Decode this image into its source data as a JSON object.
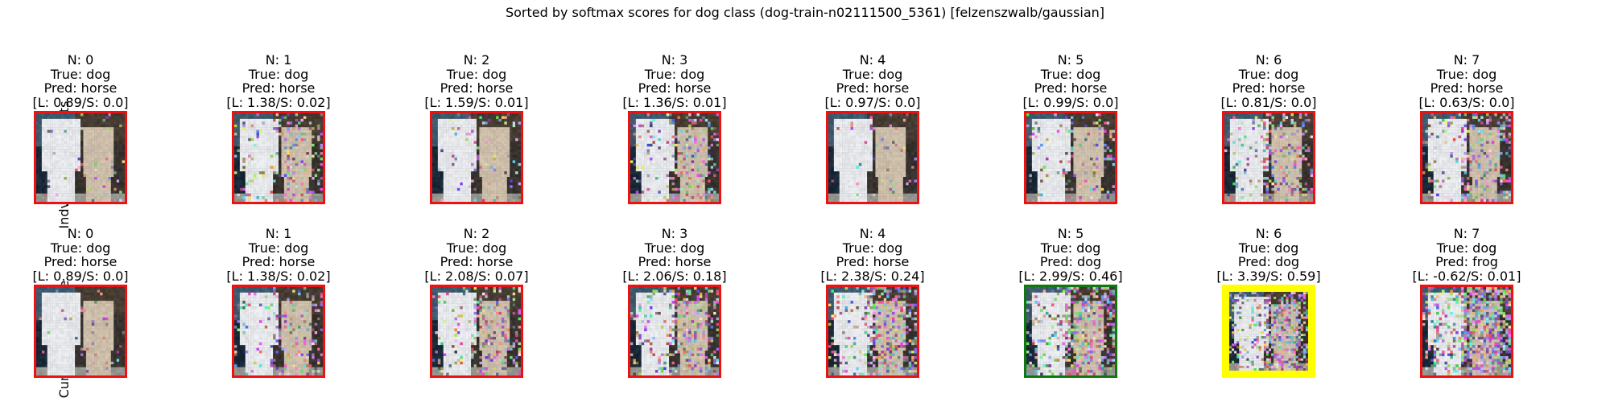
{
  "figure": {
    "title": "Sorted by softmax scores for dog class (dog-train-n02111500_5361) [felzenszwalb/gaussian]",
    "row_labels": [
      "Indvidual Segments",
      "Cumulative Image"
    ]
  },
  "colors": {
    "red": "#ee1111",
    "green": "#117711",
    "yellow": "#ffff00"
  },
  "rows": [
    {
      "name": "Indvidual Segments",
      "panels": [
        {
          "n": "N: 0",
          "true": "True: dog",
          "pred": "Pred: horse",
          "score": "[L: 0.89/S: 0.0]",
          "border": "red",
          "noise": 0.05
        },
        {
          "n": "N: 1",
          "true": "True: dog",
          "pred": "Pred: horse",
          "score": "[L: 1.38/S: 0.02]",
          "border": "red",
          "noise": 0.2
        },
        {
          "n": "N: 2",
          "true": "True: dog",
          "pred": "Pred: horse",
          "score": "[L: 1.59/S: 0.01]",
          "border": "red",
          "noise": 0.08
        },
        {
          "n": "N: 3",
          "true": "True: dog",
          "pred": "Pred: horse",
          "score": "[L: 1.36/S: 0.01]",
          "border": "red",
          "noise": 0.25
        },
        {
          "n": "N: 4",
          "true": "True: dog",
          "pred": "Pred: horse",
          "score": "[L: 0.97/S: 0.0]",
          "border": "red",
          "noise": 0.05
        },
        {
          "n": "N: 5",
          "true": "True: dog",
          "pred": "Pred: horse",
          "score": "[L: 0.99/S: 0.0]",
          "border": "red",
          "noise": 0.15
        },
        {
          "n": "N: 6",
          "true": "True: dog",
          "pred": "Pred: horse",
          "score": "[L: 0.81/S: 0.0]",
          "border": "red",
          "noise": 0.25
        },
        {
          "n": "N: 7",
          "true": "True: dog",
          "pred": "Pred: horse",
          "score": "[L: 0.63/S: 0.0]",
          "border": "red",
          "noise": 0.3
        }
      ]
    },
    {
      "name": "Cumulative Image",
      "panels": [
        {
          "n": "N: 0",
          "true": "True: dog",
          "pred": "Pred: horse",
          "score": "[L: 0.89/S: 0.0]",
          "border": "red",
          "noise": 0.05
        },
        {
          "n": "N: 1",
          "true": "True: dog",
          "pred": "Pred: horse",
          "score": "[L: 1.38/S: 0.02]",
          "border": "red",
          "noise": 0.2
        },
        {
          "n": "N: 2",
          "true": "True: dog",
          "pred": "Pred: horse",
          "score": "[L: 2.08/S: 0.07]",
          "border": "red",
          "noise": 0.25
        },
        {
          "n": "N: 3",
          "true": "True: dog",
          "pred": "Pred: horse",
          "score": "[L: 2.06/S: 0.18]",
          "border": "red",
          "noise": 0.35
        },
        {
          "n": "N: 4",
          "true": "True: dog",
          "pred": "Pred: horse",
          "score": "[L: 2.38/S: 0.24]",
          "border": "red",
          "noise": 0.4
        },
        {
          "n": "N: 5",
          "true": "True: dog",
          "pred": "Pred: dog",
          "score": "[L: 2.99/S: 0.46]",
          "border": "green",
          "noise": 0.45
        },
        {
          "n": "N: 6",
          "true": "True: dog",
          "pred": "Pred: dog",
          "score": "[L: 3.39/S: 0.59]",
          "border": "yellow",
          "noise": 0.55
        },
        {
          "n": "N: 7",
          "true": "True: dog",
          "pred": "Pred: frog",
          "score": "[L: -0.62/S: 0.01]",
          "border": "red",
          "noise": 0.65
        }
      ]
    }
  ],
  "chart_data": {
    "type": "image-grid",
    "title": "Sorted by softmax scores for dog class (dog-train-n02111500_5361) [felzenszwalb/gaussian]",
    "rows": [
      "Indvidual Segments",
      "Cumulative Image"
    ],
    "columns": [
      0,
      1,
      2,
      3,
      4,
      5,
      6,
      7
    ],
    "true_label": "dog",
    "series": [
      {
        "name": "Indvidual Segments",
        "pred": [
          "horse",
          "horse",
          "horse",
          "horse",
          "horse",
          "horse",
          "horse",
          "horse"
        ],
        "logit": [
          0.89,
          1.38,
          1.59,
          1.36,
          0.97,
          0.99,
          0.81,
          0.63
        ],
        "softmax": [
          0.0,
          0.02,
          0.01,
          0.01,
          0.0,
          0.0,
          0.0,
          0.0
        ]
      },
      {
        "name": "Cumulative Image",
        "pred": [
          "horse",
          "horse",
          "horse",
          "horse",
          "horse",
          "dog",
          "dog",
          "frog"
        ],
        "logit": [
          0.89,
          1.38,
          2.08,
          2.06,
          2.38,
          2.99,
          3.39,
          -0.62
        ],
        "softmax": [
          0.0,
          0.02,
          0.07,
          0.18,
          0.24,
          0.46,
          0.59,
          0.01
        ]
      }
    ]
  }
}
